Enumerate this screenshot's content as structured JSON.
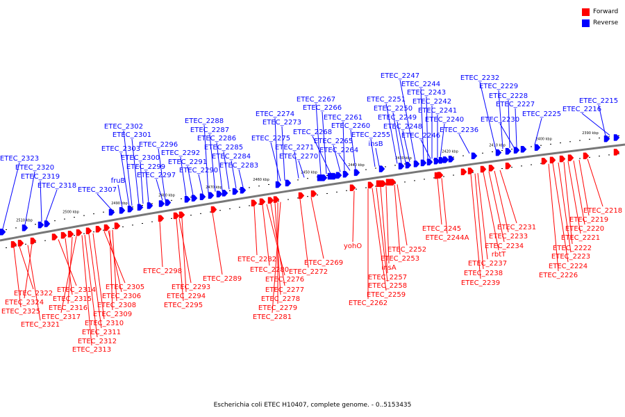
{
  "legend": {
    "forward": {
      "label": "Forward",
      "color": "#ff0000"
    },
    "reverse": {
      "label": "Reverse",
      "color": "#0000ff"
    }
  },
  "caption": "Escherichia coli ETEC H10407, complete genome. - 0..5153435",
  "axis": {
    "color": "#777777"
  },
  "ticks": [
    "2510 kbp",
    "2500 kbp",
    "2490 kbp",
    "2480 kbp",
    "2470 kbp",
    "2460 kbp",
    "2450 kbp",
    "2440 kbp",
    "2430 kbp",
    "2420 kbp",
    "2410 kbp",
    "2400 kbp",
    "2390 kbp"
  ],
  "forward_labels": [
    "ETEC_2322",
    "ETEC_2324",
    "ETEC_2325",
    "ETEC_2321",
    "ETEC_2314",
    "ETEC_2315",
    "ETEC_2316",
    "ETEC_2317",
    "ETEC_2305",
    "ETEC_2306",
    "ETEC_2308",
    "ETEC_2309",
    "ETEC_2310",
    "ETEC_2311",
    "ETEC_2312",
    "ETEC_2313",
    "ETEC_2298",
    "ETEC_2293",
    "ETEC_2294",
    "ETEC_2295",
    "ETEC_2289",
    "ETEC_2282",
    "ETEC_2280",
    "ETEC_2276",
    "ETEC_2277",
    "ETEC_2278",
    "ETEC_2279",
    "ETEC_2281",
    "ETEC_2272",
    "ETEC_2269",
    "yohO",
    "ETEC_2252",
    "ETEC_2253",
    "insA",
    "ETEC_2257",
    "ETEC_2258",
    "ETEC_2259",
    "ETEC_2262",
    "ETEC_2245",
    "ETEC_2244A",
    "ETEC_2231",
    "ETEC_2233",
    "ETEC_2234",
    "rbtT",
    "ETEC_2237",
    "ETEC_2238",
    "ETEC_2239",
    "ETEC_2218",
    "ETEC_2219",
    "ETEC_2220",
    "ETEC_2221",
    "ETEC_2222",
    "ETEC_2223",
    "ETEC_2224",
    "ETEC_2226"
  ],
  "reverse_labels": [
    "ETEC_2323",
    "ETEC_2320",
    "ETEC_2319",
    "ETEC_2318",
    "ETEC_2307",
    "fruB",
    "ETEC_2302",
    "ETEC_2301",
    "ETEC_2303",
    "ETEC_2300",
    "ETEC_2299",
    "ETEC_2297",
    "ETEC_2296",
    "ETEC_2292",
    "ETEC_2291",
    "ETEC_2290",
    "ETEC_2288",
    "ETEC_2287",
    "ETEC_2286",
    "ETEC_2285",
    "ETEC_2284",
    "ETEC_2283",
    "ETEC_2274",
    "ETEC_2273",
    "ETEC_2275",
    "ETEC_2271",
    "ETEC_2270",
    "ETEC_2267",
    "ETEC_2266",
    "ETEC_2268",
    "ETEC_2261",
    "ETEC_2260",
    "ETEC_2265",
    "ETEC_2264",
    "ETEC_2255",
    "insB",
    "ETEC_2251",
    "ETEC_2250",
    "ETEC_2249",
    "ETEC_2248",
    "ETEC_2247",
    "ETEC_2244",
    "ETEC_2243",
    "ETEC_2242",
    "ETEC_2241",
    "ETEC_2240",
    "ETEC_2246",
    "ETEC_2236",
    "ETEC_2232",
    "ETEC_2229",
    "ETEC_2228",
    "ETEC_2227",
    "ETEC_2230",
    "ETEC_2225",
    "ETEC_2215",
    "ETEC_2216"
  ]
}
